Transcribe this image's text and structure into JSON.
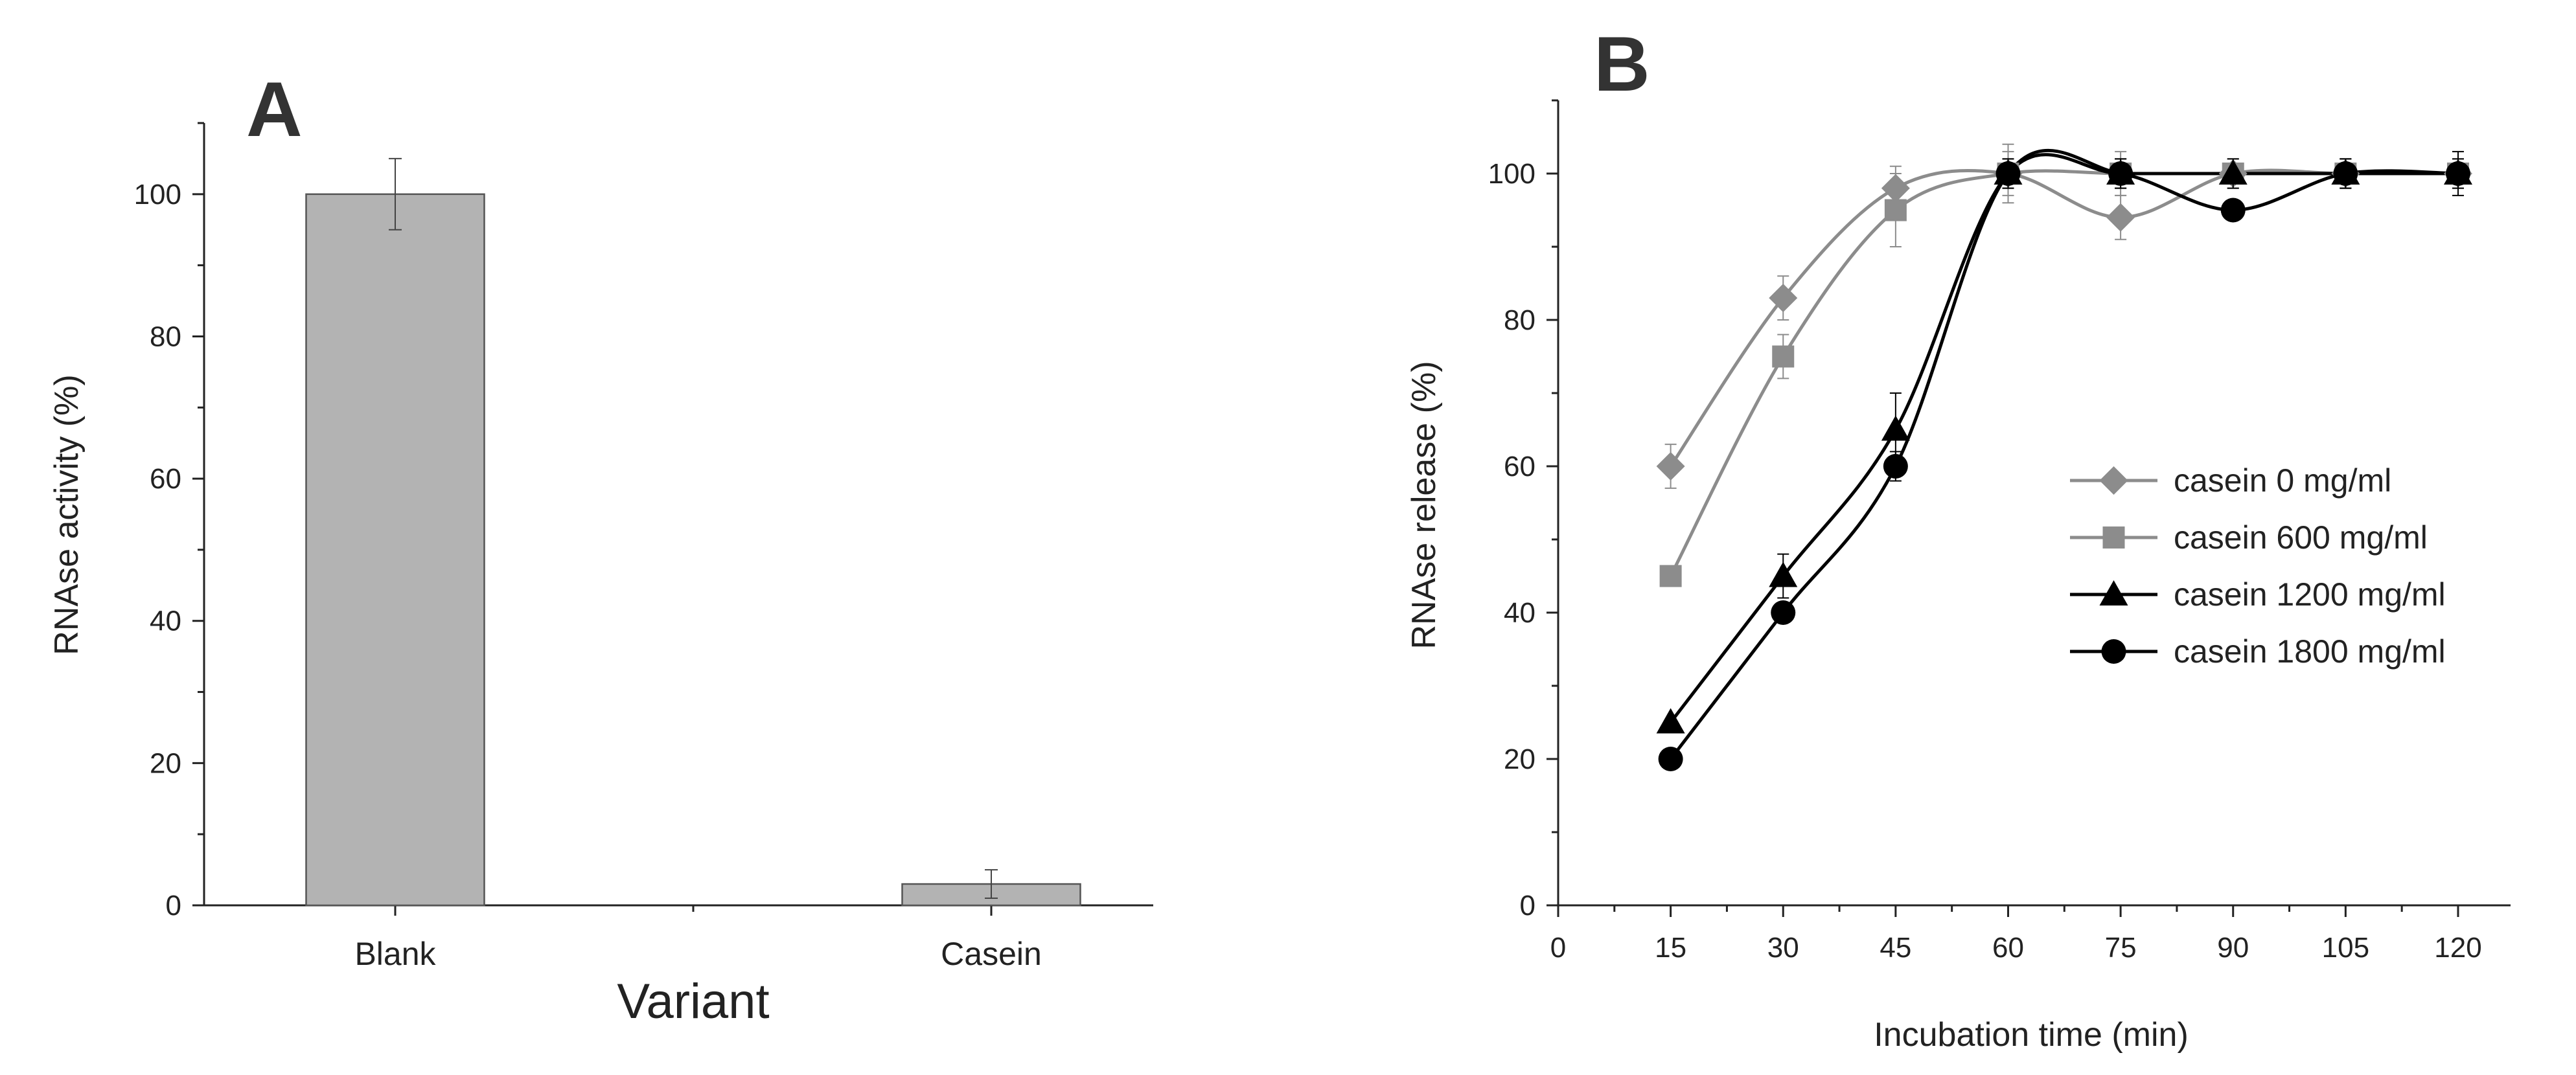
{
  "chart_data": [
    {
      "type": "bar",
      "panel_label": "A",
      "categories": [
        "Blank",
        "Casein"
      ],
      "values": [
        100,
        3
      ],
      "errors": [
        5,
        2
      ],
      "xlabel": "Variant",
      "ylabel": "RNAse activity (%)",
      "ylim": [
        0,
        110
      ],
      "yticks": [
        0,
        20,
        40,
        60,
        80,
        100
      ],
      "color": "#b3b3b3",
      "grid": false
    },
    {
      "type": "line",
      "panel_label": "B",
      "xlabel": "Incubation time (min)",
      "ylabel": "RNAse release (%)",
      "xlim": [
        0,
        127
      ],
      "ylim": [
        0,
        110
      ],
      "xticks": [
        0,
        15,
        30,
        45,
        60,
        75,
        90,
        105,
        120
      ],
      "yticks": [
        0,
        20,
        40,
        60,
        80,
        100
      ],
      "legend_position": "center-right",
      "grid": false,
      "x": [
        15,
        30,
        45,
        60,
        75,
        90,
        105,
        120
      ],
      "series": [
        {
          "name": "casein 0 mg/ml",
          "marker": "diamond",
          "color": "#8c8c8c",
          "values": [
            60,
            83,
            98,
            100,
            94,
            100,
            100,
            100
          ],
          "errors": [
            3,
            3,
            3,
            4,
            3,
            2,
            2,
            2
          ]
        },
        {
          "name": "casein 600 mg/ml",
          "marker": "square",
          "color": "#8c8c8c",
          "values": [
            45,
            75,
            95,
            100,
            100,
            100,
            100,
            100
          ],
          "errors": [
            0,
            3,
            5,
            3,
            3,
            2,
            2,
            2
          ]
        },
        {
          "name": "casein 1200 mg/ml",
          "marker": "triangle",
          "color": "#000000",
          "values": [
            25,
            45,
            65,
            100,
            100,
            100,
            100,
            100
          ],
          "errors": [
            0,
            3,
            5,
            2,
            2,
            2,
            2,
            2
          ]
        },
        {
          "name": "casein 1800 mg/ml",
          "marker": "circle",
          "color": "#000000",
          "values": [
            20,
            40,
            60,
            100,
            100,
            95,
            100,
            100
          ],
          "errors": [
            0,
            0,
            2,
            2,
            2,
            0,
            2,
            3
          ]
        }
      ]
    }
  ]
}
